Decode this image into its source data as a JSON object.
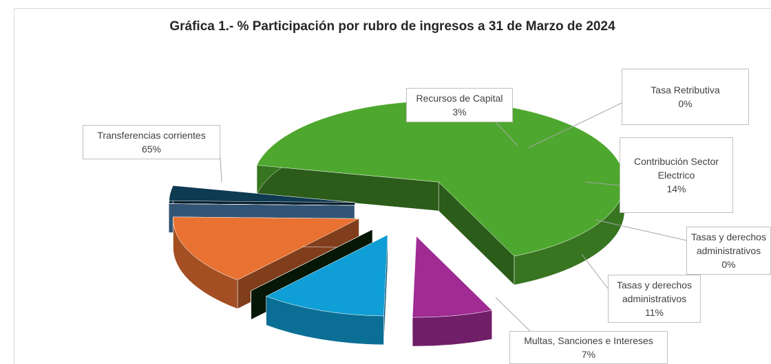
{
  "chart_data": {
    "type": "pie",
    "title": "Gráfica 1.- % Participación por rubro de ingresos a 31 de Marzo de  2024",
    "categories": [
      "Transferencias corrientes",
      "Recursos de Capital",
      "Tasa Retributiva",
      "Contribución Sector Electrico",
      "Tasas y derechos administrativos",
      "Tasas y derechos administrativos",
      "Multas, Sanciones e Intereses"
    ],
    "values": [
      65,
      3,
      0,
      14,
      0,
      11,
      7
    ],
    "value_labels": [
      "65%",
      "3%",
      "0%",
      "14%",
      "0%",
      "11%",
      "7%"
    ],
    "colors": [
      "#4ea72e",
      "#0e3a52",
      "#5b9bd5",
      "#e97132",
      "#0b2a0b",
      "#0f9ed5",
      "#a02b93"
    ]
  }
}
